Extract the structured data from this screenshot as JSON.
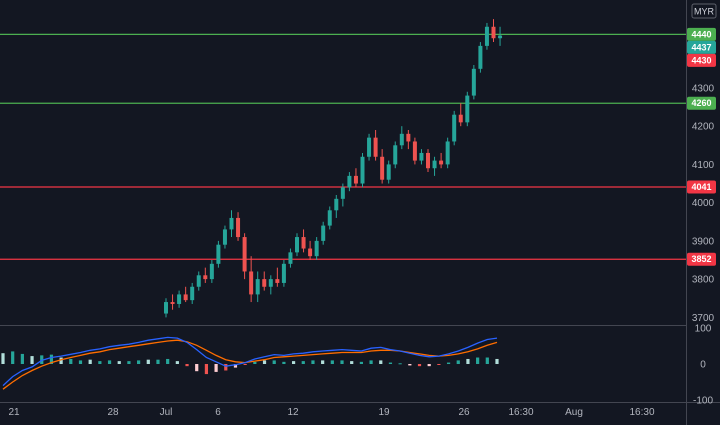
{
  "chart_data": {
    "type": "candlestick",
    "currency": "MYR",
    "price_axis_ticks": [
      "4300",
      "4200",
      "4100",
      "4000",
      "3900",
      "3800",
      "3700"
    ],
    "price_tick_values": [
      4300,
      4200,
      4100,
      4000,
      3900,
      3800,
      3700
    ],
    "ylim": [
      3680,
      4530
    ],
    "time_axis_ticks": [
      "21",
      "28",
      "Jul",
      "6",
      "12",
      "19",
      "26",
      "16:30",
      "Aug",
      "16:30"
    ],
    "horizontal_levels": [
      {
        "label": "4440",
        "value": 4440,
        "color": "#4caf50"
      },
      {
        "label": "4260",
        "value": 4260,
        "color": "#4caf50"
      },
      {
        "label": "4041",
        "value": 4041,
        "color": "#f23645"
      },
      {
        "label": "3852",
        "value": 3852,
        "color": "#f23645"
      }
    ],
    "price_tags": [
      {
        "label": "4437",
        "value": 4437,
        "color": "#26a69a"
      },
      {
        "label": "4430",
        "value": 4430,
        "color": "#f23645"
      }
    ],
    "candles": [
      [
        3710,
        3750,
        3700,
        3740
      ],
      [
        3740,
        3760,
        3720,
        3735
      ],
      [
        3735,
        3770,
        3725,
        3760
      ],
      [
        3760,
        3780,
        3740,
        3745
      ],
      [
        3745,
        3790,
        3735,
        3780
      ],
      [
        3780,
        3820,
        3770,
        3810
      ],
      [
        3810,
        3830,
        3790,
        3800
      ],
      [
        3800,
        3850,
        3790,
        3840
      ],
      [
        3840,
        3900,
        3830,
        3890
      ],
      [
        3890,
        3940,
        3880,
        3930
      ],
      [
        3930,
        3980,
        3910,
        3960
      ],
      [
        3960,
        3975,
        3900,
        3910
      ],
      [
        3910,
        3920,
        3800,
        3820
      ],
      [
        3820,
        3860,
        3740,
        3760
      ],
      [
        3760,
        3820,
        3740,
        3800
      ],
      [
        3800,
        3820,
        3770,
        3780
      ],
      [
        3780,
        3810,
        3760,
        3800
      ],
      [
        3800,
        3830,
        3780,
        3790
      ],
      [
        3790,
        3850,
        3780,
        3840
      ],
      [
        3840,
        3880,
        3830,
        3870
      ],
      [
        3870,
        3920,
        3860,
        3910
      ],
      [
        3910,
        3930,
        3870,
        3880
      ],
      [
        3880,
        3900,
        3850,
        3860
      ],
      [
        3860,
        3910,
        3850,
        3900
      ],
      [
        3900,
        3950,
        3890,
        3940
      ],
      [
        3940,
        3990,
        3930,
        3980
      ],
      [
        3980,
        4020,
        3960,
        4010
      ],
      [
        4010,
        4050,
        3990,
        4040
      ],
      [
        4040,
        4080,
        4030,
        4070
      ],
      [
        4070,
        4090,
        4040,
        4050
      ],
      [
        4050,
        4130,
        4040,
        4120
      ],
      [
        4120,
        4180,
        4110,
        4170
      ],
      [
        4170,
        4190,
        4110,
        4120
      ],
      [
        4120,
        4140,
        4050,
        4060
      ],
      [
        4060,
        4110,
        4050,
        4100
      ],
      [
        4100,
        4160,
        4090,
        4150
      ],
      [
        4150,
        4200,
        4140,
        4180
      ],
      [
        4180,
        4190,
        4140,
        4160
      ],
      [
        4160,
        4170,
        4100,
        4110
      ],
      [
        4110,
        4140,
        4100,
        4130
      ],
      [
        4130,
        4140,
        4080,
        4090
      ],
      [
        4090,
        4120,
        4070,
        4110
      ],
      [
        4110,
        4130,
        4090,
        4100
      ],
      [
        4100,
        4170,
        4090,
        4160
      ],
      [
        4160,
        4240,
        4150,
        4230
      ],
      [
        4230,
        4260,
        4200,
        4210
      ],
      [
        4210,
        4290,
        4200,
        4280
      ],
      [
        4280,
        4360,
        4270,
        4350
      ],
      [
        4350,
        4420,
        4340,
        4410
      ],
      [
        4410,
        4470,
        4400,
        4460
      ],
      [
        4460,
        4480,
        4420,
        4430
      ],
      [
        4430,
        4460,
        4410,
        4437
      ]
    ],
    "oscillator": {
      "ylim": [
        -100,
        100
      ],
      "ticks": [
        "100",
        "0",
        "-100"
      ],
      "tick_values": [
        100,
        0,
        -100
      ],
      "fast_line": [
        -60,
        -35,
        -18,
        -8,
        10,
        18,
        22,
        27,
        32,
        38,
        42,
        48,
        52,
        55,
        60,
        66,
        70,
        74,
        72,
        60,
        40,
        18,
        6,
        -6,
        -2,
        4,
        14,
        20,
        26,
        24,
        28,
        30,
        34,
        36,
        38,
        40,
        38,
        36,
        44,
        46,
        40,
        36,
        30,
        24,
        20,
        22,
        28,
        36,
        46,
        58,
        68,
        72
      ],
      "slow_line": [
        -70,
        -50,
        -32,
        -18,
        -6,
        4,
        12,
        18,
        24,
        30,
        34,
        40,
        44,
        48,
        52,
        56,
        60,
        64,
        66,
        62,
        52,
        38,
        24,
        12,
        6,
        4,
        8,
        12,
        18,
        20,
        22,
        24,
        26,
        28,
        30,
        32,
        32,
        32,
        36,
        38,
        38,
        36,
        32,
        28,
        24,
        22,
        24,
        28,
        34,
        42,
        52,
        60
      ],
      "histogram": [
        30,
        35,
        28,
        22,
        24,
        26,
        18,
        14,
        10,
        12,
        8,
        10,
        8,
        8,
        10,
        12,
        12,
        14,
        8,
        -6,
        -20,
        -28,
        -22,
        -18,
        -10,
        -2,
        6,
        10,
        10,
        6,
        8,
        8,
        10,
        10,
        10,
        10,
        8,
        6,
        10,
        10,
        4,
        2,
        -4,
        -6,
        -6,
        -2,
        4,
        10,
        14,
        18,
        18,
        14
      ]
    },
    "up_color": "#26a69a",
    "down_color": "#ef5350",
    "grid": false
  }
}
